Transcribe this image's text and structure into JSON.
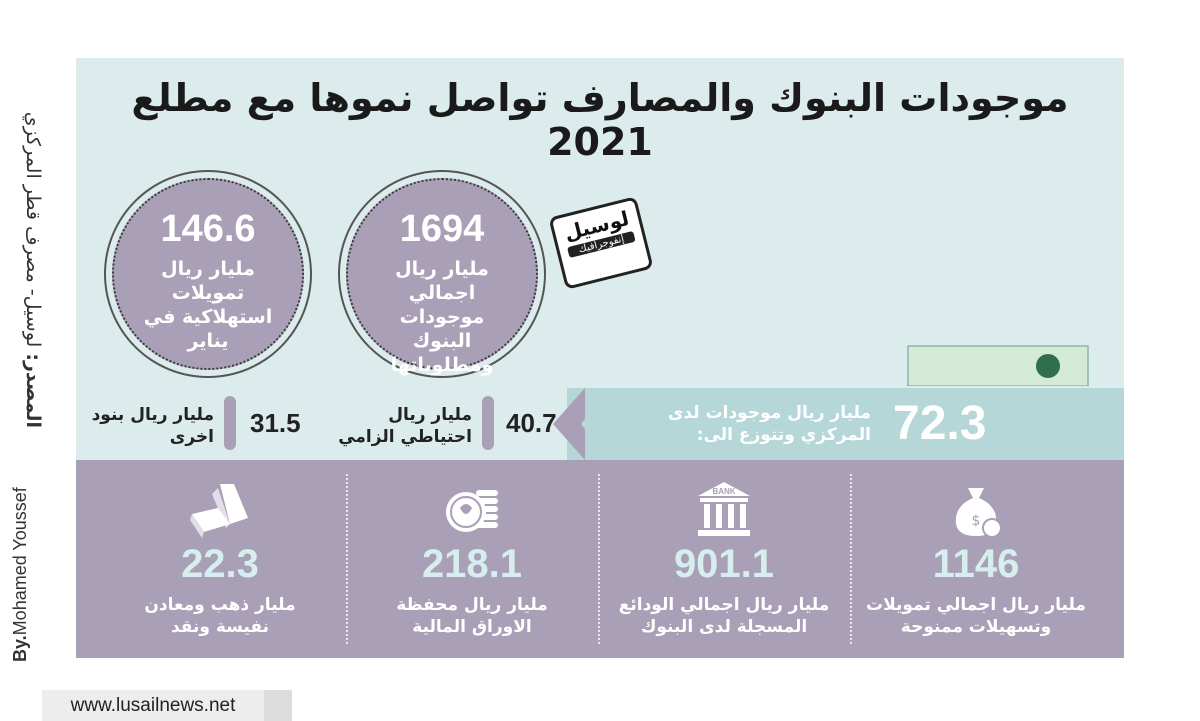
{
  "source_label": "المصدر:",
  "source_text": "لوسيل- مصرف قطر المركزي",
  "by_label": "By.",
  "author": "Mohamed Youssef",
  "title": "موجودات البنوك والمصارف تواصل نموها مع مطلع 2021",
  "stamp": {
    "main": "لوسيل",
    "sub": "إنفوجرافيك"
  },
  "circles": [
    {
      "value": "1694",
      "label": "مليار ريال اجمالي موجودات البنوك ومطلوباتها"
    },
    {
      "value": "146.6",
      "label": "مليار ريال تمويلات استهلاكية في يناير"
    }
  ],
  "central": {
    "value": "72.3",
    "label": "مليار ريال موجودات لدى المركزي وتتوزع الى:"
  },
  "breakdown": [
    {
      "value": "40.7",
      "label_line1": "مليار ريال",
      "label_line2": "احتياطي الزامي"
    },
    {
      "value": "31.5",
      "label_line1": "مليار ريال بنود",
      "label_line2": "اخرى"
    }
  ],
  "bottom": [
    {
      "icon": "money-bag-icon",
      "value": "1146",
      "label_line1": "مليار ريال اجمالي تمويلات",
      "label_line2": "وتسهيلات ممنوحة"
    },
    {
      "icon": "bank-icon",
      "icon_text": "BANK",
      "value": "901.1",
      "label_line1": "مليار ريال اجمالي الودائع",
      "label_line2": "المسجلة لدى البنوك"
    },
    {
      "icon": "coins-icon",
      "value": "218.1",
      "label_line1": "مليار ريال محفظة",
      "label_line2": "الاوراق المالية"
    },
    {
      "icon": "gold-bars-icon",
      "value": "22.3",
      "label_line1": "مليار ذهب  ومعادن",
      "label_line2": "نفيسة ونقد"
    }
  ],
  "website": "www.lusailnews.net",
  "colors": {
    "panel": "#dcebeb",
    "purple": "#a99fb6",
    "teal_band": "#b5d7d7",
    "number_light": "#d7eeee"
  }
}
